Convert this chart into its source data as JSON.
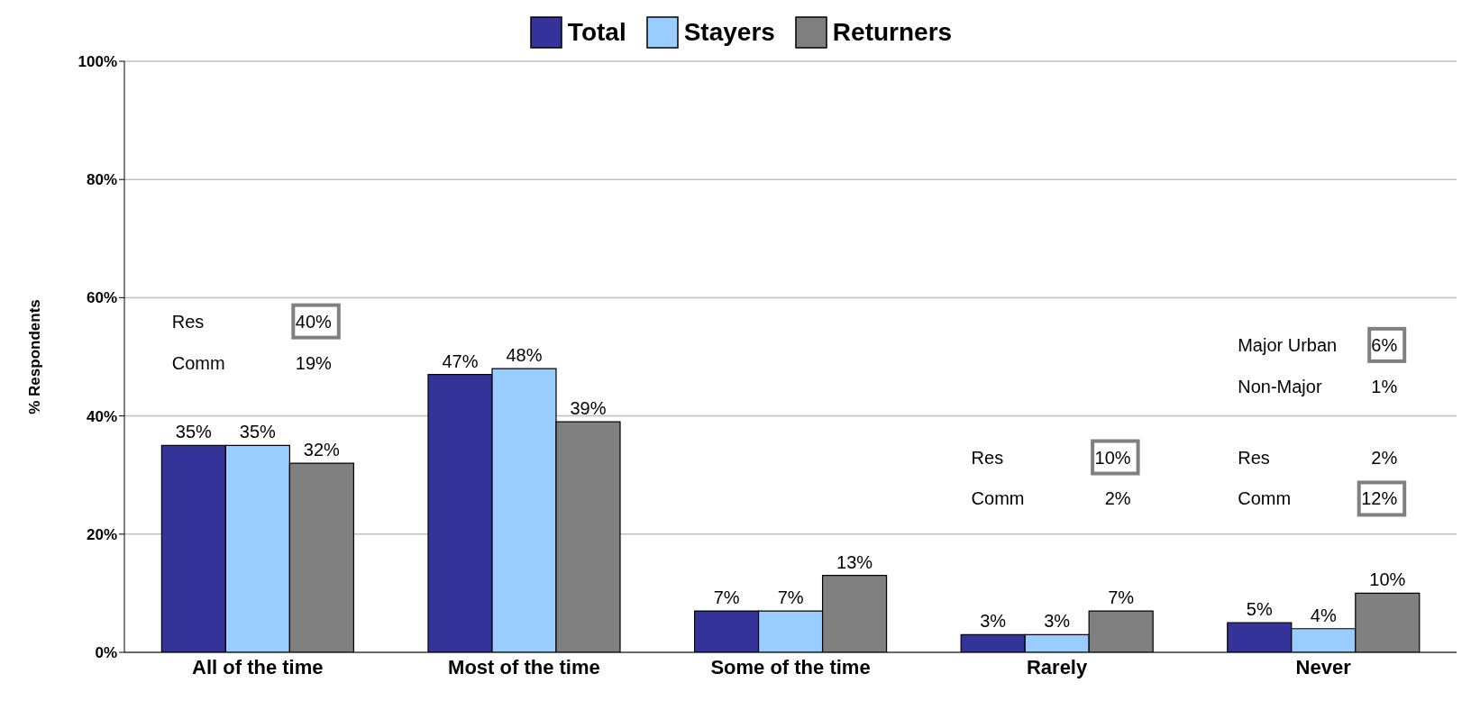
{
  "chart_data": {
    "type": "bar",
    "ylabel": "% Respondents",
    "categories": [
      "All of the time",
      "Most of the time",
      "Some of the time",
      "Rarely",
      "Never"
    ],
    "series": [
      {
        "name": "Total",
        "color": "#333399",
        "values": [
          35,
          47,
          7,
          3,
          5
        ],
        "value_labels": [
          "35%",
          "47%",
          "7%",
          "3%",
          "5%"
        ]
      },
      {
        "name": "Stayers",
        "color": "#99ccff",
        "values": [
          35,
          48,
          7,
          3,
          4
        ],
        "value_labels": [
          "35%",
          "48%",
          "7%",
          "3%",
          "4%"
        ]
      },
      {
        "name": "Returners",
        "color": "#808080",
        "values": [
          32,
          39,
          13,
          7,
          10
        ],
        "value_labels": [
          "32%",
          "39%",
          "13%",
          "7%",
          "10%"
        ]
      }
    ],
    "ylim": [
      0,
      100
    ],
    "yticks": [
      {
        "value": 0,
        "label": "0%"
      },
      {
        "value": 20,
        "label": "20%"
      },
      {
        "value": 40,
        "label": "40%"
      },
      {
        "value": 60,
        "label": "60%"
      },
      {
        "value": 80,
        "label": "80%"
      },
      {
        "value": 100,
        "label": "100%"
      }
    ],
    "grid": "y",
    "legend": "top",
    "annotations": [
      "Res",
      "40%",
      "Comm",
      "19%",
      "Res",
      "10%",
      "Comm",
      "2%",
      "Major Urban",
      "6%",
      "Non-Major",
      "1%",
      "Res",
      "2%",
      "Comm",
      "12%"
    ]
  }
}
